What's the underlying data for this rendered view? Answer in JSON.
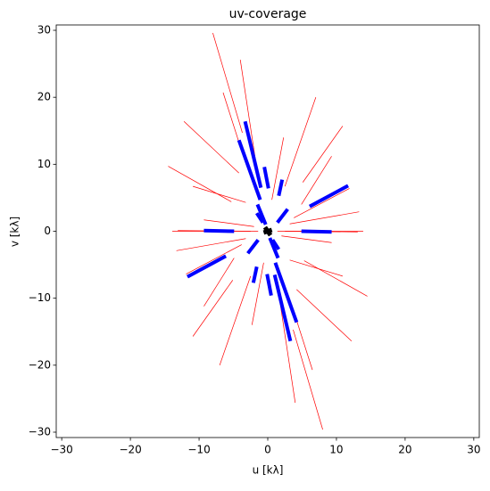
{
  "chart_data": {
    "type": "segments",
    "title": "uv-coverage",
    "x_label": "u [kλ]",
    "y_label": "v [kλ]",
    "xlim": [
      -30.8,
      30.8
    ],
    "ylim": [
      -30.8,
      30.8
    ],
    "xticks": [
      {
        "value": -30,
        "label": "−30"
      },
      {
        "value": -20,
        "label": "−20"
      },
      {
        "value": -10,
        "label": "−10"
      },
      0,
      10,
      20,
      30
    ],
    "yticks": [
      {
        "value": -30,
        "label": "−30"
      },
      {
        "value": -20,
        "label": "−20"
      },
      {
        "value": -10,
        "label": "−10"
      },
      0,
      10,
      20,
      30
    ],
    "series": [
      {
        "color": "#ff0000",
        "linewidth": 0.7,
        "segments": [
          [
            -8,
            29.6,
            -3.7,
            14.7
          ],
          [
            -4,
            25.6,
            -1.4,
            8
          ],
          [
            -6.5,
            20.7,
            -4.2,
            13.3
          ],
          [
            -12.2,
            16.4,
            -4.2,
            8.7
          ],
          [
            -14.5,
            9.7,
            -5.3,
            4.4
          ],
          [
            -10.9,
            6.7,
            -3.2,
            4.3
          ],
          [
            -13.1,
            0.1,
            -1.4,
            0
          ],
          [
            -9.3,
            1.7,
            -2,
            0.7
          ],
          [
            7,
            20,
            2.5,
            6.7
          ],
          [
            10.9,
            15.7,
            5.1,
            7.3
          ],
          [
            2.3,
            14,
            0.6,
            4.7
          ],
          [
            9.3,
            11.2,
            4.9,
            4
          ],
          [
            11.9,
            6.4,
            3.8,
            2
          ],
          [
            13.3,
            2.9,
            3.2,
            1.1
          ],
          [
            13.9,
            0,
            2.5,
            0
          ],
          [
            8,
            -29.6,
            3.7,
            -14.7
          ],
          [
            4,
            -25.6,
            1.4,
            -8
          ],
          [
            6.5,
            -20.7,
            4.2,
            -13.3
          ],
          [
            12.2,
            -16.4,
            4.2,
            -8.7
          ],
          [
            14.5,
            -9.7,
            5.3,
            -4.4
          ],
          [
            10.9,
            -6.7,
            3.2,
            -4.3
          ],
          [
            13.1,
            -0.1,
            1.4,
            0
          ],
          [
            9.3,
            -1.7,
            2,
            -0.7
          ],
          [
            -7,
            -20,
            -2.5,
            -6.7
          ],
          [
            -10.9,
            -15.7,
            -5.1,
            -7.3
          ],
          [
            -2.3,
            -14,
            -0.6,
            -4.7
          ],
          [
            -9.3,
            -11.2,
            -4.9,
            -4
          ],
          [
            -11.9,
            -6.4,
            -3.8,
            -2
          ],
          [
            -13.3,
            -2.9,
            -3.2,
            -1.1
          ],
          [
            -13.9,
            0,
            -2.5,
            0
          ]
        ]
      },
      {
        "color": "#0000ff",
        "linewidth": 4,
        "segments": [
          [
            -3.3,
            16.4,
            -1,
            6.5
          ],
          [
            -1.5,
            4,
            -0.3,
            1
          ],
          [
            -4.2,
            13.6,
            -1.1,
            4.7
          ],
          [
            -0.5,
            9.6,
            0.1,
            6.4
          ],
          [
            6.1,
            3.7,
            11.7,
            6.8
          ],
          [
            4.9,
            0,
            9.3,
            -0.1
          ],
          [
            2.9,
            3.3,
            1.4,
            1.3
          ],
          [
            -1.6,
            2.7,
            -0.7,
            1.3
          ],
          [
            2.1,
            7.7,
            1.6,
            5.3
          ],
          [
            3.3,
            -16.4,
            1,
            -6.5
          ],
          [
            1.5,
            -4,
            0.3,
            -1
          ],
          [
            4.2,
            -13.6,
            1.1,
            -4.7
          ],
          [
            0.5,
            -9.6,
            -0.1,
            -6.4
          ],
          [
            -6.1,
            -3.7,
            -11.7,
            -6.8
          ],
          [
            -4.9,
            0,
            -9.3,
            0.1
          ],
          [
            -2.9,
            -3.3,
            -1.4,
            -1.3
          ],
          [
            1.6,
            -2.7,
            0.7,
            -1.3
          ],
          [
            -2.1,
            -7.7,
            -1.6,
            -5.3
          ]
        ]
      },
      {
        "color": "#000000",
        "linewidth": 5,
        "segments": [
          [
            -0.4,
            0.6,
            0.4,
            -0.6
          ],
          [
            -0.6,
            -0.2,
            0.6,
            0.2
          ]
        ]
      }
    ]
  }
}
